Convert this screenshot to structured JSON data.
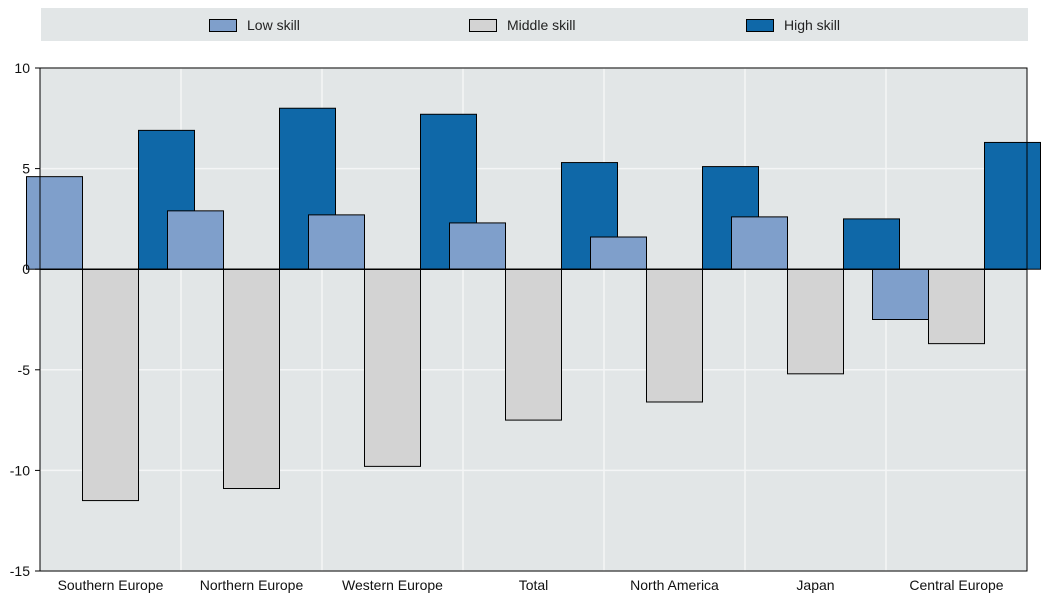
{
  "chart_data": {
    "type": "bar",
    "categories": [
      "Southern Europe",
      "Northern Europe",
      "Western Europe",
      "Total",
      "North America",
      "Japan",
      "Central Europe"
    ],
    "series": [
      {
        "name": "Low skill",
        "color": "#7f9fcb",
        "values": [
          4.6,
          2.9,
          2.7,
          2.3,
          1.6,
          2.6,
          -2.5
        ]
      },
      {
        "name": "Middle skill",
        "color": "#d3d3d3",
        "values": [
          -11.5,
          -10.9,
          -9.8,
          -7.5,
          -6.6,
          -5.2,
          -3.7
        ]
      },
      {
        "name": "High skill",
        "color": "#0f68a8",
        "values": [
          6.9,
          8.0,
          7.7,
          5.3,
          5.1,
          2.5,
          6.3
        ]
      }
    ],
    "yticks": [
      "10",
      "5",
      "0",
      "-5",
      "-10",
      "-15"
    ],
    "ylim": [
      -15,
      10
    ],
    "legend_position": "top",
    "grid": true,
    "plot_background": "#e2e6e7"
  }
}
